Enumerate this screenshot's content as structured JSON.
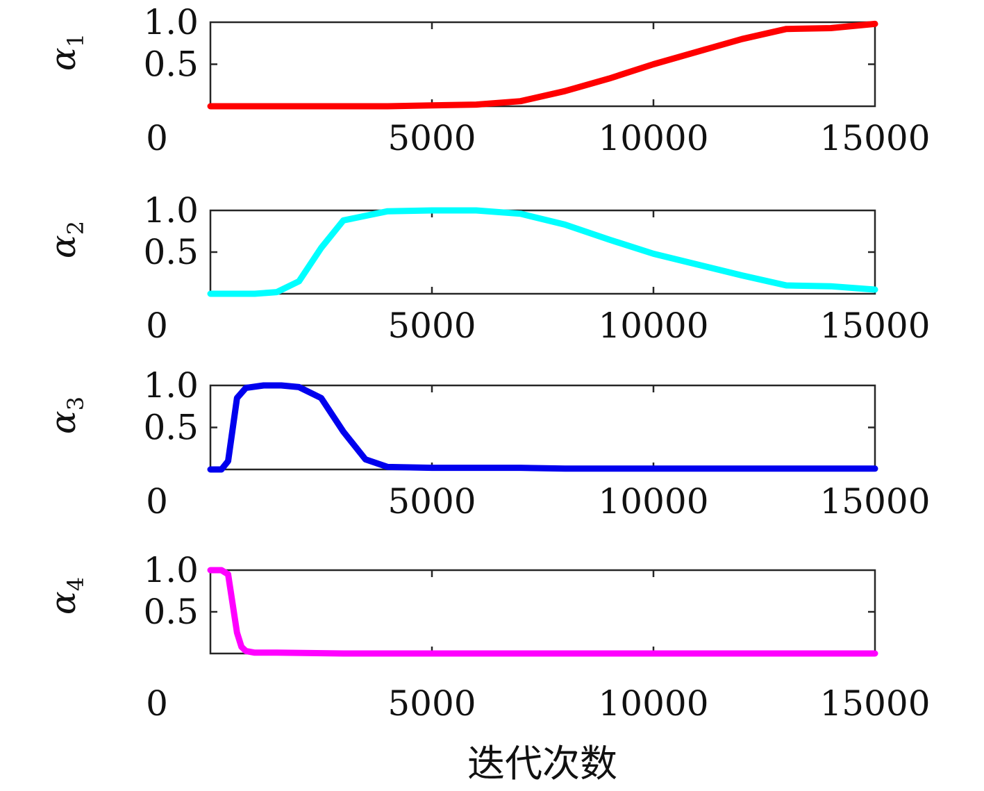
{
  "chart_data": {
    "type": "line",
    "xlabel": "迭代次数",
    "panels": [
      {
        "ylabel_main": "α",
        "ylabel_sub": "1",
        "color": "#ff0000",
        "xlim": [
          0,
          15000
        ],
        "ylim": [
          0,
          1.0
        ],
        "yticks": [
          "0.5",
          "1.0"
        ],
        "xticks": [
          "0",
          "5000",
          "10000",
          "15000"
        ],
        "x": [
          0,
          1000,
          2000,
          3000,
          4000,
          5000,
          6000,
          7000,
          8000,
          9000,
          10000,
          11000,
          12000,
          13000,
          14000,
          15000
        ],
        "y": [
          0.0,
          0.0,
          0.0,
          0.0,
          0.0,
          0.01,
          0.02,
          0.06,
          0.18,
          0.33,
          0.5,
          0.65,
          0.8,
          0.92,
          0.93,
          0.98
        ]
      },
      {
        "ylabel_main": "α",
        "ylabel_sub": "2",
        "color": "#00ffff",
        "xlim": [
          0,
          15000
        ],
        "ylim": [
          0,
          1.0
        ],
        "yticks": [
          "0.5",
          "1.0"
        ],
        "xticks": [
          "0",
          "5000",
          "10000",
          "15000"
        ],
        "x": [
          0,
          1000,
          1500,
          2000,
          2500,
          3000,
          4000,
          5000,
          6000,
          7000,
          8000,
          9000,
          10000,
          11000,
          12000,
          13000,
          14000,
          15000
        ],
        "y": [
          0.0,
          0.0,
          0.02,
          0.15,
          0.55,
          0.88,
          0.99,
          1.0,
          1.0,
          0.96,
          0.83,
          0.65,
          0.48,
          0.35,
          0.22,
          0.1,
          0.09,
          0.05
        ]
      },
      {
        "ylabel_main": "α",
        "ylabel_sub": "3",
        "color": "#0000ee",
        "xlim": [
          0,
          15000
        ],
        "ylim": [
          0,
          1.0
        ],
        "yticks": [
          "0.5",
          "1.0"
        ],
        "xticks": [
          "0",
          "5000",
          "10000",
          "15000"
        ],
        "x": [
          0,
          250,
          400,
          600,
          800,
          1200,
          1600,
          2000,
          2500,
          3000,
          3500,
          4000,
          5000,
          6000,
          7000,
          8000,
          10000,
          12000,
          15000
        ],
        "y": [
          0.0,
          0.0,
          0.1,
          0.85,
          0.97,
          1.0,
          1.0,
          0.98,
          0.85,
          0.45,
          0.12,
          0.03,
          0.02,
          0.02,
          0.02,
          0.01,
          0.01,
          0.01,
          0.01
        ]
      },
      {
        "ylabel_main": "α",
        "ylabel_sub": "4",
        "color": "#ff00ff",
        "xlim": [
          0,
          15000
        ],
        "ylim": [
          0,
          1.0
        ],
        "yticks": [
          "0.5",
          "1.0"
        ],
        "xticks": [
          "0",
          "5000",
          "10000",
          "15000"
        ],
        "x": [
          0,
          250,
          400,
          500,
          600,
          700,
          800,
          1000,
          1500,
          3000,
          6000,
          10000,
          15000
        ],
        "y": [
          1.0,
          1.0,
          0.95,
          0.6,
          0.25,
          0.08,
          0.03,
          0.01,
          0.01,
          0.0,
          0.0,
          0.0,
          0.0
        ]
      }
    ]
  }
}
